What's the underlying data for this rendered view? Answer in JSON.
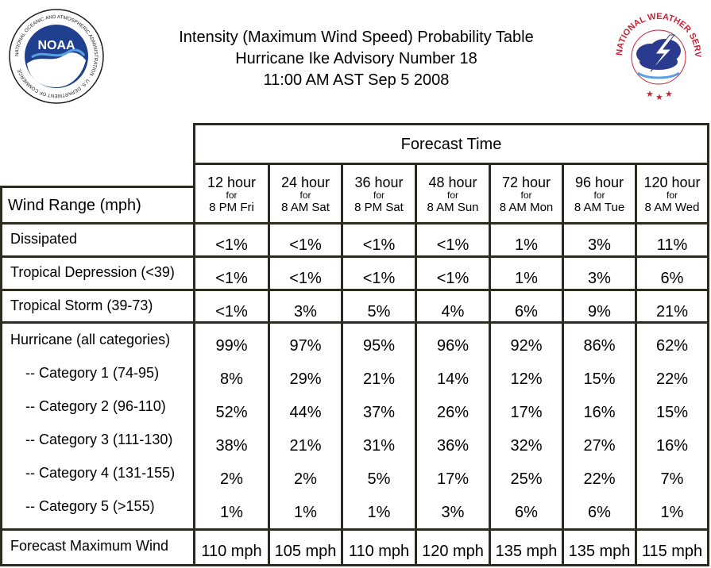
{
  "header": {
    "title_line1": "Intensity (Maximum Wind Speed) Probability Table",
    "title_line2": "Hurricane Ike Advisory Number 18",
    "title_line3": "11:00 AM AST Sep 5 2008"
  },
  "logos": {
    "noaa_text": "NOAA",
    "noaa_ring_text": "NATIONAL OCEANIC AND ATMOSPHERIC ADMINISTRATION · U.S. DEPARTMENT OF COMMERCE",
    "nws_ring_text": "NATIONAL WEATHER SERVICE"
  },
  "table": {
    "forecast_time_label": "Forecast Time",
    "wind_range_label": "Wind Range (mph)",
    "columns": [
      {
        "hours": "12 hour",
        "for": "for",
        "when": "8 PM Fri"
      },
      {
        "hours": "24 hour",
        "for": "for",
        "when": "8 AM Sat"
      },
      {
        "hours": "36 hour",
        "for": "for",
        "when": "8 PM Sat"
      },
      {
        "hours": "48 hour",
        "for": "for",
        "when": "8 AM Sun"
      },
      {
        "hours": "72 hour",
        "for": "for",
        "when": "8 AM Mon"
      },
      {
        "hours": "96 hour",
        "for": "for",
        "when": "8 AM Tue"
      },
      {
        "hours": "120 hour",
        "for": "for",
        "when": "8 AM Wed"
      }
    ],
    "rows": [
      {
        "label": "Dissipated",
        "values": [
          "<1%",
          "<1%",
          "<1%",
          "<1%",
          "1%",
          "3%",
          "11%"
        ]
      },
      {
        "label": "Tropical Depression (<39)",
        "values": [
          "<1%",
          "<1%",
          "<1%",
          "<1%",
          "1%",
          "3%",
          "6%"
        ]
      },
      {
        "label": "Tropical Storm (39-73)",
        "values": [
          "<1%",
          "3%",
          "5%",
          "4%",
          "6%",
          "9%",
          "21%"
        ]
      },
      {
        "label": "Hurricane (all categories)",
        "values": [
          "99%",
          "97%",
          "95%",
          "96%",
          "92%",
          "86%",
          "62%"
        ]
      },
      {
        "label": "-- Category 1 (74-95)",
        "values": [
          "8%",
          "29%",
          "21%",
          "14%",
          "12%",
          "15%",
          "22%"
        ]
      },
      {
        "label": "-- Category 2 (96-110)",
        "values": [
          "52%",
          "44%",
          "37%",
          "26%",
          "17%",
          "16%",
          "15%"
        ]
      },
      {
        "label": "-- Category 3 (111-130)",
        "values": [
          "38%",
          "21%",
          "31%",
          "36%",
          "32%",
          "27%",
          "16%"
        ]
      },
      {
        "label": "-- Category 4 (131-155)",
        "values": [
          "2%",
          "2%",
          "5%",
          "17%",
          "25%",
          "22%",
          "7%"
        ]
      },
      {
        "label": "-- Category 5 (>155)",
        "values": [
          "1%",
          "1%",
          "1%",
          "3%",
          "6%",
          "6%",
          "1%"
        ]
      }
    ],
    "max_wind": {
      "label": "Forecast Maximum Wind",
      "values": [
        "110 mph",
        "105 mph",
        "110 mph",
        "120 mph",
        "135 mph",
        "135 mph",
        "115 mph"
      ]
    }
  },
  "colors": {
    "grid": "#2b2b1e",
    "noaa_blue": "#1f3f8f",
    "nws_red": "#cc2233"
  }
}
